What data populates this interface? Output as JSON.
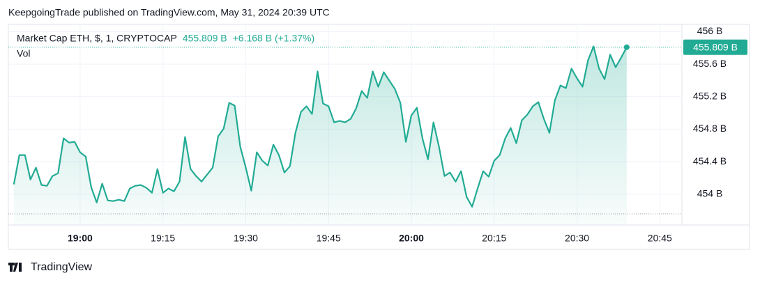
{
  "header": "KeepgoingTrade published on TradingView.com, May 31, 2024 20:39 UTC",
  "footer": "TradingView",
  "chart_data": {
    "type": "area",
    "legend_volume": "Vol",
    "last_value_label": "455.809 B",
    "change": "+6.168 B (+1.37%)",
    "x": [
      "18:48",
      "18:49",
      "18:50",
      "18:51",
      "18:52",
      "18:53",
      "18:54",
      "18:55",
      "18:56",
      "18:57",
      "18:58",
      "18:59",
      "19:00",
      "19:01",
      "19:02",
      "19:03",
      "19:04",
      "19:05",
      "19:06",
      "19:07",
      "19:08",
      "19:09",
      "19:10",
      "19:11",
      "19:12",
      "19:13",
      "19:14",
      "19:15",
      "19:16",
      "19:17",
      "19:18",
      "19:19",
      "19:20",
      "19:21",
      "19:22",
      "19:23",
      "19:24",
      "19:25",
      "19:26",
      "19:27",
      "19:28",
      "19:29",
      "19:30",
      "19:31",
      "19:32",
      "19:33",
      "19:34",
      "19:35",
      "19:36",
      "19:37",
      "19:38",
      "19:39",
      "19:40",
      "19:41",
      "19:42",
      "19:43",
      "19:44",
      "19:45",
      "19:46",
      "19:47",
      "19:48",
      "19:49",
      "19:50",
      "19:51",
      "19:52",
      "19:53",
      "19:54",
      "19:55",
      "19:56",
      "19:57",
      "19:58",
      "19:59",
      "20:00",
      "20:01",
      "20:02",
      "20:03",
      "20:04",
      "20:05",
      "20:06",
      "20:07",
      "20:08",
      "20:09",
      "20:10",
      "20:11",
      "20:12",
      "20:13",
      "20:14",
      "20:15",
      "20:16",
      "20:17",
      "20:18",
      "20:19",
      "20:20",
      "20:21",
      "20:22",
      "20:23",
      "20:24",
      "20:25",
      "20:26",
      "20:27",
      "20:28",
      "20:29",
      "20:30",
      "20:31",
      "20:32",
      "20:33",
      "20:34",
      "20:35",
      "20:36",
      "20:37",
      "20:38",
      "20:39"
    ],
    "series": [
      {
        "name": "Market Cap ETH, $, 1, CRYPTOCAP",
        "color": "#22ab94",
        "values": [
          454.12,
          454.481,
          454.481,
          454.18,
          454.326,
          454.112,
          454.103,
          454.223,
          454.257,
          454.687,
          454.635,
          454.644,
          454.515,
          454.463,
          454.086,
          453.897,
          454.129,
          453.923,
          453.914,
          453.931,
          453.914,
          454.069,
          454.103,
          454.112,
          454.077,
          454.017,
          454.309,
          454.017,
          454.069,
          454.034,
          454.154,
          454.704,
          454.309,
          454.223,
          454.154,
          454.24,
          454.326,
          454.712,
          454.807,
          455.124,
          455.09,
          454.584,
          454.326,
          454.043,
          454.515,
          454.412,
          454.352,
          454.609,
          454.481,
          454.266,
          454.343,
          454.755,
          455.013,
          455.082,
          454.987,
          455.511,
          455.116,
          455.082,
          454.884,
          454.901,
          454.884,
          454.927,
          455.056,
          455.27,
          455.185,
          455.511,
          455.322,
          455.502,
          455.399,
          455.296,
          455.124,
          454.644,
          454.97,
          455.064,
          454.687,
          454.429,
          454.884,
          454.584,
          454.223,
          454.266,
          454.154,
          454.283,
          453.966,
          453.845,
          454.069,
          454.283,
          454.215,
          454.412,
          454.481,
          454.687,
          454.815,
          454.627,
          454.91,
          454.979,
          455.082,
          455.133,
          454.927,
          454.755,
          455.159,
          455.339,
          455.305,
          455.545,
          455.425,
          455.322,
          455.648,
          455.82,
          455.545,
          455.416,
          455.717,
          455.562,
          455.682,
          455.809
        ]
      }
    ],
    "xlim": [
      "18:47",
      "20:49"
    ],
    "xticks": [
      "19:00",
      "19:15",
      "19:30",
      "19:45",
      "20:00",
      "20:15",
      "20:30",
      "20:45"
    ],
    "ylim": [
      453.62,
      456.09
    ],
    "yticks": [
      {
        "value": 454,
        "label": "454 B"
      },
      {
        "value": 454.4,
        "label": "454.4 B"
      },
      {
        "value": 454.8,
        "label": "454.8 B"
      },
      {
        "value": 455.2,
        "label": "455.2 B"
      },
      {
        "value": 455.6,
        "label": "455.6 B"
      },
      {
        "value": 456,
        "label": "456 B"
      }
    ],
    "grid": true
  }
}
